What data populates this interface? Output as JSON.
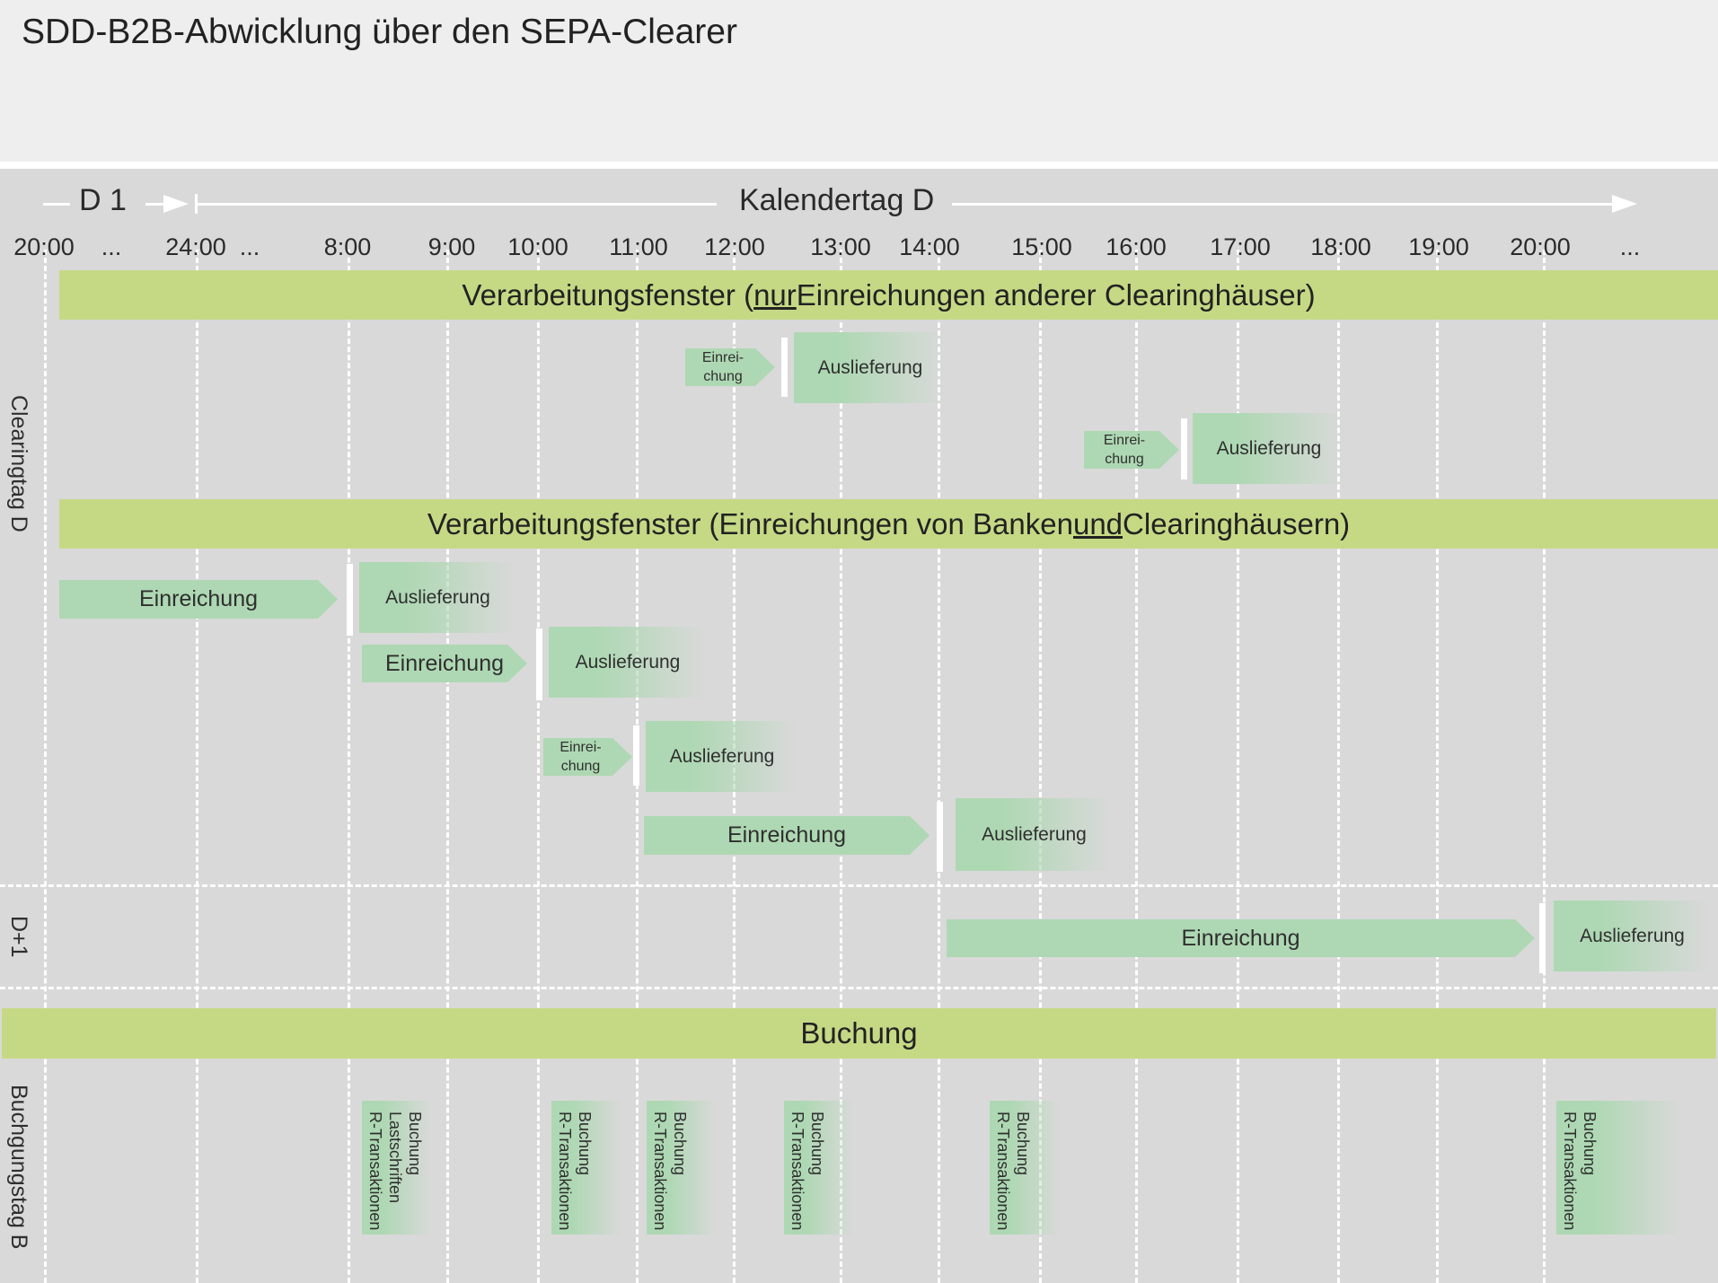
{
  "title": "SDD-B2B-Abwicklung über den SEPA-Clearer",
  "header": {
    "prev_day": "D 1",
    "calendar_day": "Kalendertag D"
  },
  "time_ticks": [
    "20:00",
    "...",
    "24:00",
    "...",
    "8:00",
    "9:00",
    "10:00",
    "11:00",
    "12:00",
    "13:00",
    "14:00",
    "15:00",
    "16:00",
    "17:00",
    "18:00",
    "19:00",
    "20:00",
    "..."
  ],
  "row_labels": {
    "clearing_day": "Clearingtag D",
    "next_day": "D+1",
    "booking_day": "Buchgungstag B"
  },
  "bands": {
    "window1": {
      "pre": "Verarbeitungsfenster (",
      "em": "nur",
      "post": " Einreichungen anderer Clearinghäuser)"
    },
    "window2": {
      "pre": "Verarbeitungsfenster (Einreichungen von Banken ",
      "em": "und",
      "post": " Clearinghäusern)"
    },
    "booking": "Buchung"
  },
  "cycles": [
    {
      "submission": "Einrei- chung",
      "delivery": "Auslieferung"
    },
    {
      "submission": "Einrei- chung",
      "delivery": "Auslieferung"
    },
    {
      "submission": "Einreichung",
      "delivery": "Auslieferung"
    },
    {
      "submission": "Einreichung",
      "delivery": "Auslieferung"
    },
    {
      "submission": "Einrei- chung",
      "delivery": "Auslieferung"
    },
    {
      "submission": "Einreichung",
      "delivery": "Auslieferung"
    },
    {
      "submission": "Einreichung",
      "delivery": "Auslieferung"
    }
  ],
  "bookings": [
    "Buchung\nLastschriften\nR-Transaktionen",
    "Buchung\nR-Transaktionen",
    "Buchung\nR-Transaktionen",
    "Buchung\nR-Transaktionen",
    "Buchung\nR-Transaktionen",
    "Buchung\nR-Transaktionen"
  ]
}
